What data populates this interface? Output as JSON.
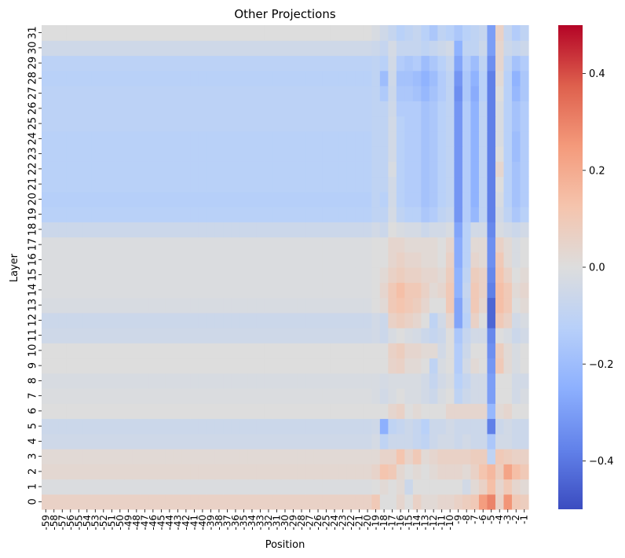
{
  "chart_data": {
    "type": "heatmap",
    "title": "Other Projections",
    "xlabel": "Position",
    "ylabel": "Layer",
    "x_ticks": [
      "-59",
      "-58",
      "-57",
      "-56",
      "-55",
      "-54",
      "-53",
      "-52",
      "-51",
      "-50",
      "-49",
      "-48",
      "-47",
      "-46",
      "-45",
      "-44",
      "-43",
      "-42",
      "-41",
      "-40",
      "-39",
      "-38",
      "-37",
      "-36",
      "-35",
      "-34",
      "-33",
      "-32",
      "-31",
      "-30",
      "-29",
      "-28",
      "-27",
      "-26",
      "-25",
      "-24",
      "-23",
      "-22",
      "-21",
      "-20",
      "-19",
      "-18",
      "-17",
      "-16",
      "-15",
      "-14",
      "-13",
      "-12",
      "-11",
      "-10",
      "-9",
      "-8",
      "-7",
      "-6",
      "-5",
      "-4",
      "-3",
      "-2",
      "-1"
    ],
    "y_ticks": [
      "0",
      "1",
      "2",
      "3",
      "4",
      "5",
      "6",
      "7",
      "8",
      "9",
      "10",
      "11",
      "12",
      "13",
      "14",
      "15",
      "16",
      "17",
      "18",
      "19",
      "20",
      "21",
      "22",
      "23",
      "24",
      "25",
      "26",
      "27",
      "28",
      "29",
      "30",
      "31"
    ],
    "colorbar": {
      "colormap": "coolwarm",
      "vmin": -0.5,
      "vmax": 0.5,
      "ticks": [
        "0.4",
        "0.2",
        "0.0",
        "−0.2",
        "−0.4"
      ],
      "tick_values": [
        0.4,
        0.2,
        0.0,
        -0.2,
        -0.4
      ]
    },
    "layer_base": [
      0.06,
      -0.01,
      0.03,
      0.02,
      -0.05,
      -0.06,
      0.0,
      -0.01,
      -0.02,
      0.0,
      0.0,
      -0.05,
      -0.06,
      -0.02,
      -0.01,
      -0.01,
      -0.01,
      -0.01,
      -0.06,
      -0.12,
      -0.13,
      -0.12,
      -0.12,
      -0.12,
      -0.12,
      -0.11,
      -0.11,
      -0.11,
      -0.12,
      -0.11,
      -0.05,
      0.0
    ],
    "columns": {
      "-19": [
        0.1,
        0.0,
        0.05,
        0.02,
        -0.03,
        -0.05,
        0.0,
        -0.02,
        -0.02,
        0.0,
        0.0,
        -0.04,
        -0.04,
        0.0,
        0.0,
        0.0,
        0.0,
        0.0,
        -0.04,
        -0.1,
        -0.1,
        -0.1,
        -0.1,
        -0.1,
        -0.1,
        -0.1,
        -0.1,
        -0.1,
        -0.1,
        -0.1,
        -0.06,
        -0.02
      ],
      "-18": [
        0.0,
        0.02,
        0.12,
        0.05,
        -0.1,
        -0.25,
        0.0,
        -0.04,
        -0.03,
        0.0,
        0.0,
        -0.06,
        -0.06,
        0.02,
        0.04,
        0.02,
        0.0,
        0.0,
        -0.06,
        -0.1,
        -0.12,
        -0.1,
        -0.1,
        -0.1,
        -0.1,
        -0.1,
        -0.1,
        -0.15,
        -0.2,
        -0.12,
        -0.08,
        -0.05
      ],
      "-17": [
        0.0,
        0.0,
        0.1,
        0.05,
        -0.06,
        -0.1,
        0.04,
        -0.02,
        -0.02,
        0.05,
        0.06,
        -0.02,
        0.06,
        0.1,
        0.1,
        0.06,
        0.04,
        0.04,
        0.0,
        -0.03,
        -0.04,
        -0.04,
        -0.02,
        -0.04,
        -0.04,
        -0.04,
        -0.05,
        -0.06,
        -0.05,
        -0.04,
        -0.03,
        -0.08
      ],
      "-16": [
        0.04,
        0.02,
        0.03,
        0.12,
        -0.06,
        -0.08,
        0.06,
        0.0,
        -0.02,
        0.06,
        0.08,
        0.0,
        0.08,
        0.12,
        0.14,
        0.08,
        0.06,
        0.04,
        -0.02,
        -0.1,
        -0.12,
        -0.12,
        -0.12,
        -0.12,
        -0.12,
        -0.12,
        -0.14,
        -0.16,
        -0.18,
        -0.14,
        -0.08,
        -0.12
      ],
      "-15": [
        0.0,
        -0.06,
        0.0,
        0.05,
        -0.06,
        -0.06,
        0.0,
        -0.02,
        -0.02,
        0.02,
        0.04,
        -0.02,
        0.06,
        0.1,
        0.1,
        0.06,
        0.04,
        0.02,
        -0.03,
        -0.12,
        -0.14,
        -0.14,
        -0.14,
        -0.14,
        -0.14,
        -0.14,
        -0.14,
        -0.16,
        -0.18,
        -0.16,
        -0.08,
        -0.1
      ],
      "-14": [
        0.06,
        0.0,
        0.02,
        0.1,
        -0.08,
        -0.08,
        0.02,
        -0.02,
        -0.02,
        0.02,
        0.04,
        -0.03,
        0.04,
        0.08,
        0.1,
        0.06,
        0.04,
        0.02,
        -0.03,
        -0.12,
        -0.14,
        -0.14,
        -0.14,
        -0.14,
        -0.14,
        -0.14,
        -0.14,
        -0.18,
        -0.2,
        -0.14,
        -0.08,
        -0.08
      ],
      "-13": [
        0.02,
        0.0,
        0.0,
        0.02,
        -0.1,
        -0.12,
        0.0,
        -0.04,
        -0.04,
        0.0,
        0.02,
        -0.06,
        0.0,
        0.04,
        0.06,
        0.04,
        0.02,
        0.02,
        -0.06,
        -0.16,
        -0.18,
        -0.18,
        -0.18,
        -0.18,
        -0.18,
        -0.18,
        -0.18,
        -0.22,
        -0.24,
        -0.2,
        -0.1,
        -0.12
      ],
      "-12": [
        0.02,
        0.0,
        0.02,
        0.04,
        -0.06,
        -0.06,
        0.0,
        -0.06,
        -0.08,
        -0.1,
        0.02,
        -0.08,
        -0.1,
        0.0,
        0.02,
        0.04,
        0.02,
        0.02,
        -0.04,
        -0.14,
        -0.16,
        -0.16,
        -0.16,
        -0.16,
        -0.16,
        -0.16,
        -0.16,
        -0.18,
        -0.2,
        -0.16,
        -0.08,
        -0.16
      ],
      "-11": [
        0.04,
        0.0,
        0.04,
        0.06,
        -0.04,
        -0.06,
        0.0,
        -0.02,
        -0.04,
        -0.02,
        -0.04,
        -0.06,
        -0.04,
        0.0,
        0.04,
        0.02,
        0.0,
        0.0,
        -0.04,
        -0.1,
        -0.12,
        -0.12,
        -0.12,
        -0.12,
        -0.12,
        -0.12,
        -0.12,
        -0.14,
        -0.14,
        -0.12,
        -0.06,
        -0.1
      ],
      "-10": [
        0.04,
        0.0,
        0.04,
        0.06,
        -0.04,
        -0.04,
        0.04,
        0.0,
        -0.02,
        0.0,
        0.0,
        0.0,
        0.04,
        0.1,
        0.1,
        0.08,
        0.06,
        0.04,
        -0.02,
        -0.08,
        -0.1,
        -0.1,
        -0.1,
        -0.1,
        -0.1,
        -0.1,
        -0.1,
        -0.1,
        -0.1,
        -0.08,
        -0.04,
        -0.12
      ],
      "-9": [
        0.06,
        0.0,
        0.04,
        0.06,
        -0.06,
        -0.06,
        0.04,
        -0.1,
        -0.12,
        -0.14,
        -0.14,
        -0.16,
        -0.28,
        -0.28,
        -0.24,
        -0.24,
        -0.26,
        -0.26,
        -0.28,
        -0.32,
        -0.32,
        -0.32,
        -0.32,
        -0.32,
        -0.32,
        -0.32,
        -0.32,
        -0.34,
        -0.32,
        -0.28,
        -0.24,
        -0.16
      ],
      "-8": [
        0.08,
        -0.04,
        0.02,
        0.06,
        -0.04,
        -0.06,
        0.04,
        -0.06,
        -0.08,
        -0.04,
        -0.06,
        -0.08,
        -0.12,
        -0.1,
        -0.08,
        -0.1,
        -0.12,
        -0.12,
        -0.12,
        -0.14,
        -0.14,
        -0.14,
        -0.14,
        -0.14,
        -0.14,
        -0.14,
        -0.14,
        -0.16,
        -0.16,
        -0.14,
        -0.1,
        -0.12
      ],
      "-7": [
        0.1,
        0.02,
        0.06,
        0.08,
        -0.06,
        -0.06,
        0.04,
        -0.04,
        -0.04,
        0.02,
        0.0,
        -0.04,
        0.06,
        0.1,
        0.1,
        0.08,
        0.04,
        0.02,
        -0.04,
        -0.22,
        -0.24,
        -0.24,
        -0.24,
        -0.24,
        -0.24,
        -0.24,
        -0.24,
        -0.26,
        -0.24,
        -0.2,
        -0.1,
        -0.1
      ],
      "-6": [
        0.24,
        0.06,
        0.12,
        0.08,
        -0.06,
        -0.06,
        0.04,
        -0.04,
        -0.04,
        0.0,
        0.0,
        -0.04,
        0.0,
        0.04,
        0.06,
        0.06,
        0.02,
        0.02,
        -0.04,
        -0.1,
        -0.1,
        -0.1,
        -0.1,
        -0.1,
        -0.1,
        -0.1,
        -0.1,
        -0.12,
        -0.12,
        -0.1,
        -0.06,
        -0.08
      ],
      "-5": [
        0.3,
        0.14,
        0.16,
        -0.1,
        -0.16,
        -0.38,
        -0.22,
        -0.3,
        -0.3,
        -0.32,
        -0.34,
        -0.36,
        -0.44,
        -0.44,
        -0.38,
        -0.36,
        -0.34,
        -0.34,
        -0.36,
        -0.38,
        -0.38,
        -0.38,
        -0.38,
        -0.38,
        -0.38,
        -0.38,
        -0.38,
        -0.38,
        -0.38,
        -0.34,
        -0.3,
        -0.3
      ],
      "-4": [
        0.06,
        0.04,
        0.08,
        0.1,
        -0.04,
        -0.06,
        0.02,
        0.0,
        0.0,
        0.1,
        0.08,
        0.0,
        0.1,
        0.14,
        0.14,
        0.12,
        0.1,
        0.06,
        -0.02,
        -0.04,
        -0.02,
        0.0,
        0.04,
        0.0,
        -0.02,
        -0.02,
        -0.02,
        0.0,
        0.02,
        0.04,
        0.04,
        0.06
      ],
      "-3": [
        0.26,
        0.1,
        0.22,
        0.08,
        -0.04,
        -0.04,
        0.04,
        0.0,
        0.0,
        0.02,
        0.02,
        -0.02,
        0.06,
        0.1,
        0.1,
        0.06,
        0.02,
        0.02,
        -0.04,
        -0.1,
        -0.12,
        -0.12,
        -0.12,
        -0.12,
        -0.12,
        -0.12,
        -0.12,
        -0.12,
        -0.12,
        -0.1,
        -0.06,
        -0.08
      ],
      "-2": [
        0.1,
        0.04,
        0.14,
        0.06,
        -0.06,
        -0.06,
        0.0,
        -0.04,
        -0.04,
        -0.02,
        -0.02,
        -0.06,
        -0.04,
        0.0,
        0.02,
        0.0,
        -0.02,
        -0.02,
        -0.06,
        -0.16,
        -0.18,
        -0.18,
        -0.18,
        -0.2,
        -0.2,
        -0.18,
        -0.18,
        -0.22,
        -0.24,
        -0.18,
        -0.08,
        -0.14
      ],
      "-1": [
        0.08,
        0.02,
        0.1,
        0.06,
        -0.06,
        -0.06,
        0.0,
        -0.02,
        -0.04,
        0.0,
        0.0,
        -0.04,
        -0.02,
        0.02,
        0.04,
        0.02,
        0.0,
        0.0,
        -0.04,
        -0.12,
        -0.14,
        -0.14,
        -0.14,
        -0.14,
        -0.14,
        -0.14,
        -0.14,
        -0.16,
        -0.16,
        -0.14,
        -0.06,
        -0.1
      ]
    }
  }
}
